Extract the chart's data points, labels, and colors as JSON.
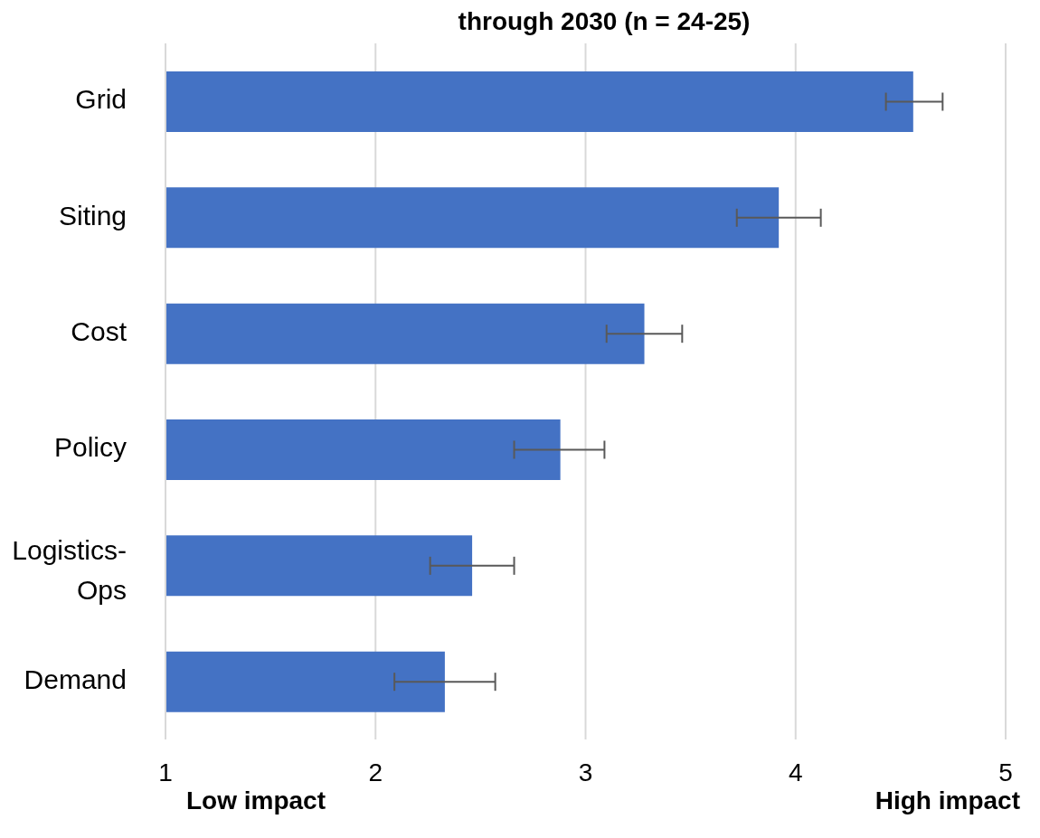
{
  "chart_data": {
    "type": "bar",
    "orientation": "horizontal",
    "title": "through 2030 (n = 24-25)",
    "categories": [
      "Grid",
      "Siting",
      "Cost",
      "Policy",
      "Logistics-Ops",
      "Demand"
    ],
    "values": [
      4.56,
      3.92,
      3.28,
      2.88,
      2.46,
      2.33
    ],
    "errors": [
      [
        4.43,
        4.7
      ],
      [
        3.72,
        4.12
      ],
      [
        3.1,
        3.46
      ],
      [
        2.66,
        3.09
      ],
      [
        2.26,
        2.66
      ],
      [
        2.09,
        2.57
      ]
    ],
    "color": "#4472c4",
    "xlim": [
      1,
      5
    ],
    "xticks": [
      1,
      2,
      3,
      4,
      5
    ],
    "grid": "x",
    "legend": false,
    "annotations": [
      "Low impact",
      "High impact"
    ]
  }
}
